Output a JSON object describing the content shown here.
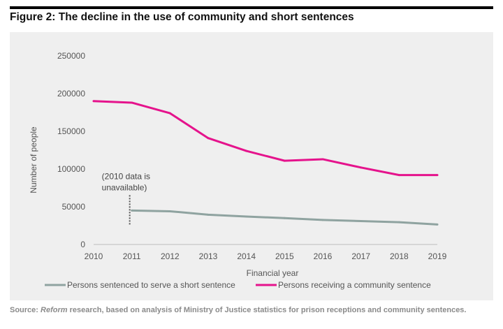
{
  "figure": {
    "title": "Figure 2: The decline in the use of community and short sentences",
    "source_prefix": "Source: ",
    "source_em": "Reform",
    "source_rest": " research, based on analysis of Ministry of Justice statistics for prison receptions and community sentences."
  },
  "chart_data": {
    "type": "line",
    "xlabel": "Financial year",
    "ylabel": "Number of people",
    "x": [
      2010,
      2011,
      2012,
      2013,
      2014,
      2015,
      2016,
      2017,
      2018,
      2019
    ],
    "y_ticks": [
      0,
      50000,
      100000,
      150000,
      200000,
      250000
    ],
    "ylim": [
      0,
      250000
    ],
    "grid": false,
    "legend_position": "bottom",
    "annotation": {
      "lines": [
        "(2010 data is",
        "unavailable)"
      ],
      "x": 2011
    },
    "series": [
      {
        "name": "Persons sentenced to serve a short sentence",
        "color": "#8fa3a0",
        "x": [
          2011,
          2012,
          2013,
          2014,
          2015,
          2016,
          2017,
          2018,
          2019
        ],
        "values": [
          45000,
          44000,
          39500,
          37000,
          35000,
          32500,
          31000,
          29500,
          26500
        ]
      },
      {
        "name": "Persons receiving a community sentence",
        "color": "#e5138c",
        "x": [
          2010,
          2011,
          2012,
          2013,
          2014,
          2015,
          2016,
          2017,
          2018,
          2019
        ],
        "values": [
          190000,
          188000,
          174000,
          141000,
          124000,
          111000,
          113000,
          102000,
          92000,
          92000
        ]
      }
    ]
  }
}
